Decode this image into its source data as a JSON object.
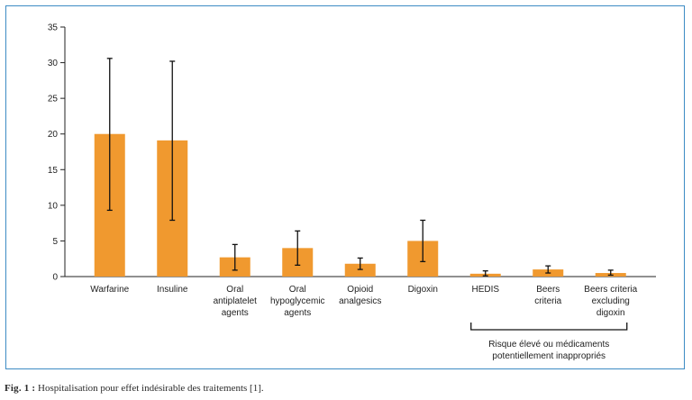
{
  "chart_data": {
    "type": "bar",
    "title": "",
    "xlabel": "",
    "ylabel": "",
    "ylim": [
      0,
      35
    ],
    "yticks": [
      0,
      5,
      10,
      15,
      20,
      25,
      30,
      35
    ],
    "grid": false,
    "bar_color": "#f0992f",
    "categories": [
      [
        "Warfarine"
      ],
      [
        "Insuline"
      ],
      [
        "Oral",
        "antiplatelet",
        "agents"
      ],
      [
        "Oral",
        "hypoglycemic",
        "agents"
      ],
      [
        "Opioid",
        "analgesics"
      ],
      [
        "Digoxin"
      ],
      [
        "HEDIS"
      ],
      [
        "Beers",
        "criteria"
      ],
      [
        "Beers criteria",
        "excluding",
        "digoxin"
      ]
    ],
    "values": [
      20,
      19.1,
      2.7,
      4.0,
      1.8,
      5.0,
      0.4,
      1.0,
      0.5
    ],
    "error_low": [
      9.3,
      7.9,
      0.9,
      1.6,
      1.0,
      2.1,
      0.1,
      0.5,
      0.2
    ],
    "error_high": [
      30.6,
      30.2,
      4.5,
      6.4,
      2.6,
      7.9,
      0.8,
      1.5,
      0.9
    ],
    "group_bracket": {
      "from_index": 6,
      "to_index": 8,
      "label_lines": [
        "Risque élevé ou médicaments",
        "potentiellement inappropriés"
      ]
    }
  },
  "caption": {
    "label": "Fig. 1 :",
    "text": "Hospitalisation pour effet indésirable des traitements [1]."
  }
}
